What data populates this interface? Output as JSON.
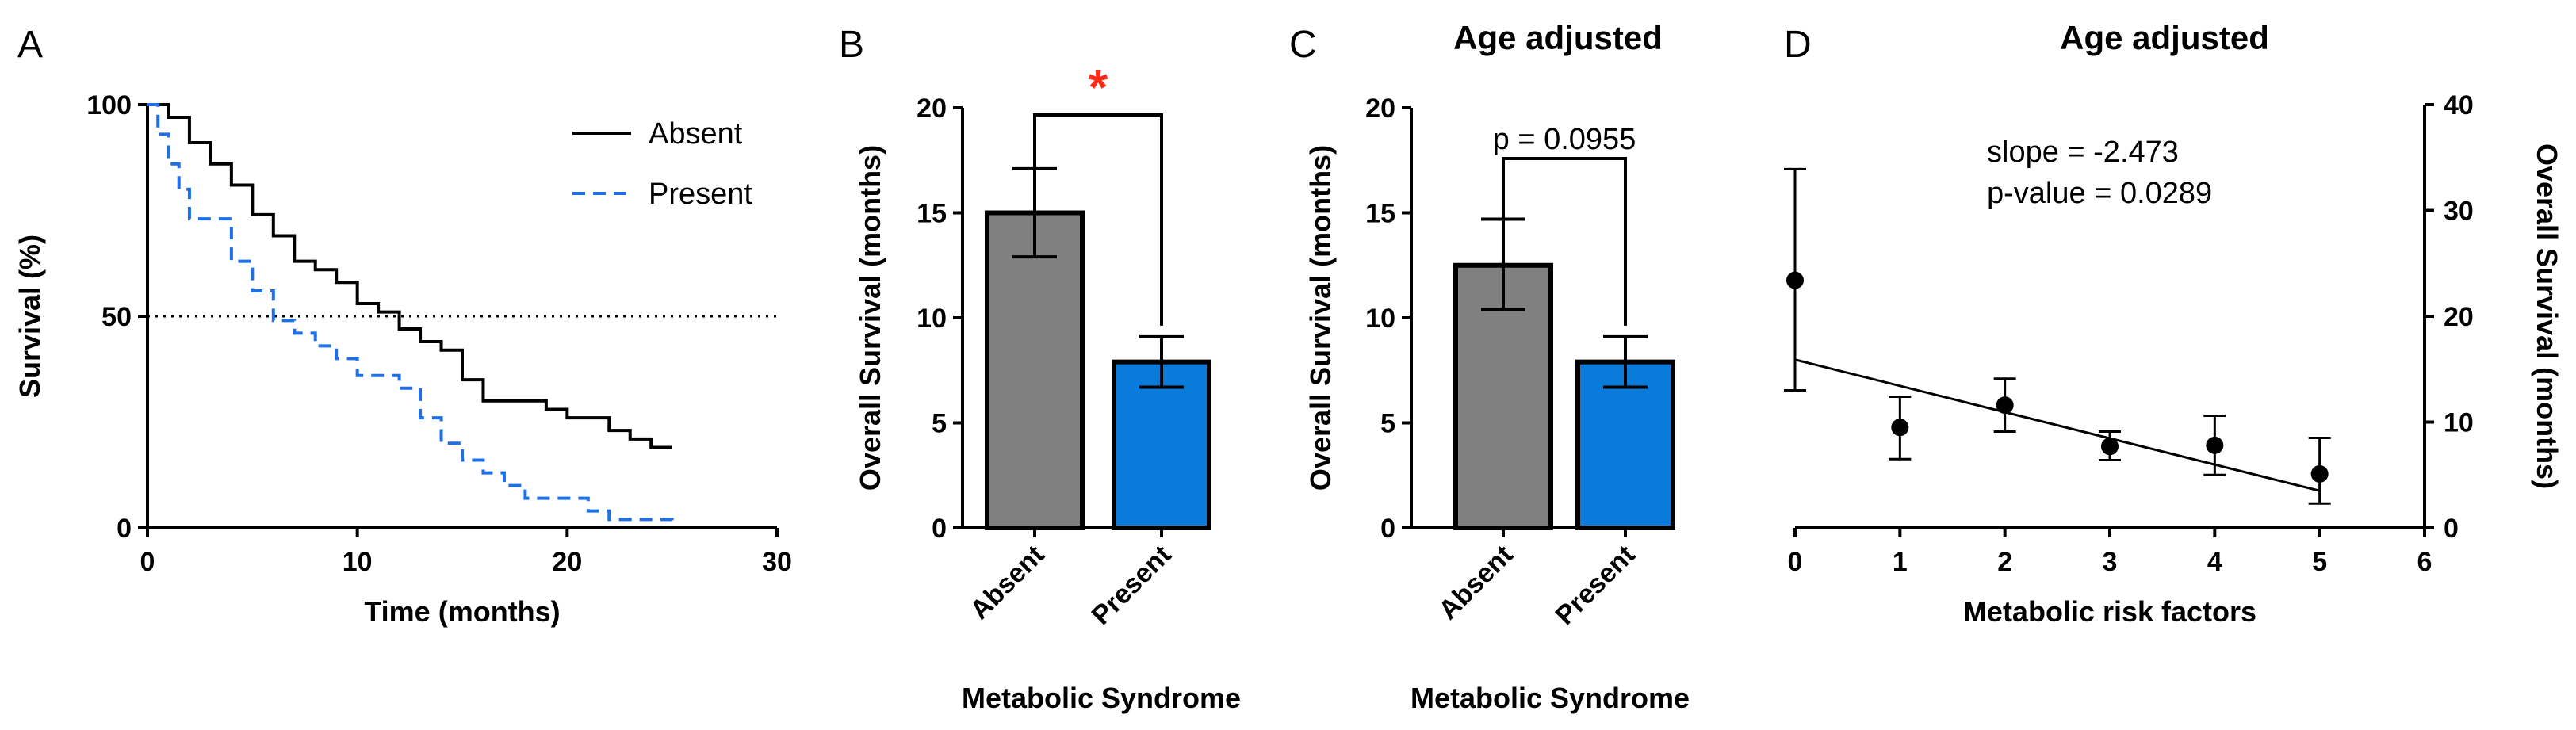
{
  "chart_data": [
    {
      "panel": "A",
      "type": "line",
      "title": "",
      "xlabel": "Time (months)",
      "ylabel": "Survival (%)",
      "xlim": [
        0,
        30
      ],
      "ylim": [
        0,
        100
      ],
      "xticks": [
        "0",
        "10",
        "20",
        "30"
      ],
      "yticks": [
        "0",
        "50",
        "100"
      ],
      "reference_line": {
        "y": 50,
        "style": "dotted"
      },
      "series": [
        {
          "name": "Absent",
          "color": "#000000",
          "style": "solid",
          "x": [
            0,
            1,
            2,
            3,
            4,
            5,
            6,
            7,
            8,
            9,
            10,
            11,
            12,
            13,
            14,
            15,
            16,
            17,
            18,
            19,
            20,
            21,
            22,
            23,
            24,
            25
          ],
          "y": [
            100,
            97,
            91,
            86,
            81,
            74,
            69,
            63,
            61,
            58,
            53,
            51,
            47,
            44,
            42,
            35,
            30,
            30,
            30,
            28,
            26,
            26,
            23,
            21,
            19,
            19
          ]
        },
        {
          "name": "Present",
          "color": "#1f6fe5",
          "style": "dashed",
          "x": [
            0,
            0.5,
            1,
            1.5,
            2,
            3,
            4,
            5,
            6,
            7,
            8,
            9,
            10,
            11,
            12,
            13,
            14,
            15,
            16,
            17,
            18,
            19,
            20,
            21,
            22,
            23,
            24,
            25
          ],
          "y": [
            100,
            93,
            86,
            80,
            73,
            73,
            63,
            56,
            49,
            46,
            43,
            40,
            36,
            36,
            33,
            26,
            20,
            16,
            13,
            10,
            7,
            7,
            7,
            4,
            2,
            2,
            2,
            0
          ]
        }
      ]
    },
    {
      "panel": "B",
      "type": "bar",
      "title": "",
      "xlabel": "Metabolic Syndrome",
      "ylabel": "Overall Survival (months)",
      "ylim": [
        0,
        20
      ],
      "yticks": [
        "0",
        "5",
        "10",
        "15",
        "20"
      ],
      "categories": [
        "Absent",
        "Present"
      ],
      "values": [
        15.0,
        7.9
      ],
      "error_low": [
        12.9,
        6.7
      ],
      "error_high": [
        17.1,
        9.1
      ],
      "colors": [
        "#808080",
        "#0b7bdb"
      ],
      "significance": {
        "label": "*",
        "color": "#ff2a1a"
      }
    },
    {
      "panel": "C",
      "type": "bar",
      "title": "Age adjusted",
      "xlabel": "Metabolic Syndrome",
      "ylabel": "Overall Survival (months)",
      "ylim": [
        0,
        20
      ],
      "yticks": [
        "0",
        "5",
        "10",
        "15",
        "20"
      ],
      "categories": [
        "Absent",
        "Present"
      ],
      "values": [
        12.5,
        7.9
      ],
      "error_low": [
        10.4,
        6.7
      ],
      "error_high": [
        14.7,
        9.1
      ],
      "colors": [
        "#808080",
        "#0b7bdb"
      ],
      "significance": {
        "label": "p = 0.0955",
        "color": "#000000"
      }
    },
    {
      "panel": "D",
      "type": "scatter",
      "title": "Age adjusted",
      "xlabel": "Metabolic risk factors",
      "ylabel": "Overall Survival (months)",
      "xlim": [
        0,
        6
      ],
      "ylim": [
        0,
        40
      ],
      "xticks": [
        "0",
        "1",
        "2",
        "3",
        "4",
        "5",
        "6"
      ],
      "yticks": [
        "0",
        "10",
        "20",
        "30",
        "40"
      ],
      "x": [
        0,
        1,
        2,
        3,
        4,
        5
      ],
      "y": [
        23.4,
        9.5,
        11.6,
        7.7,
        7.8,
        5.1
      ],
      "error_low": [
        13.0,
        6.5,
        9.1,
        6.4,
        5.0,
        2.3
      ],
      "error_high": [
        33.9,
        12.4,
        14.1,
        9.1,
        10.6,
        8.5
      ],
      "fit_line": {
        "x": [
          0,
          5
        ],
        "y": [
          15.9,
          3.5
        ]
      },
      "annotations": [
        {
          "text": "slope = -2.473",
          "color": "#000000"
        },
        {
          "text": "p-value = 0.0289",
          "color": "#ff2a1a"
        }
      ]
    }
  ]
}
